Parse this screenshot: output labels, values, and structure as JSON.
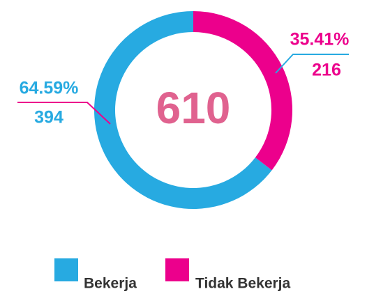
{
  "chart_data": {
    "type": "donut",
    "categories": [
      "Bekerja",
      "Tidak Bekerja"
    ],
    "values": [
      64.59,
      35.41
    ],
    "value_labels": [
      "64.59%",
      "35.41%"
    ],
    "counts": [
      394,
      216
    ],
    "total": 610,
    "colors": [
      "#27aae1",
      "#ec008c"
    ]
  }
}
